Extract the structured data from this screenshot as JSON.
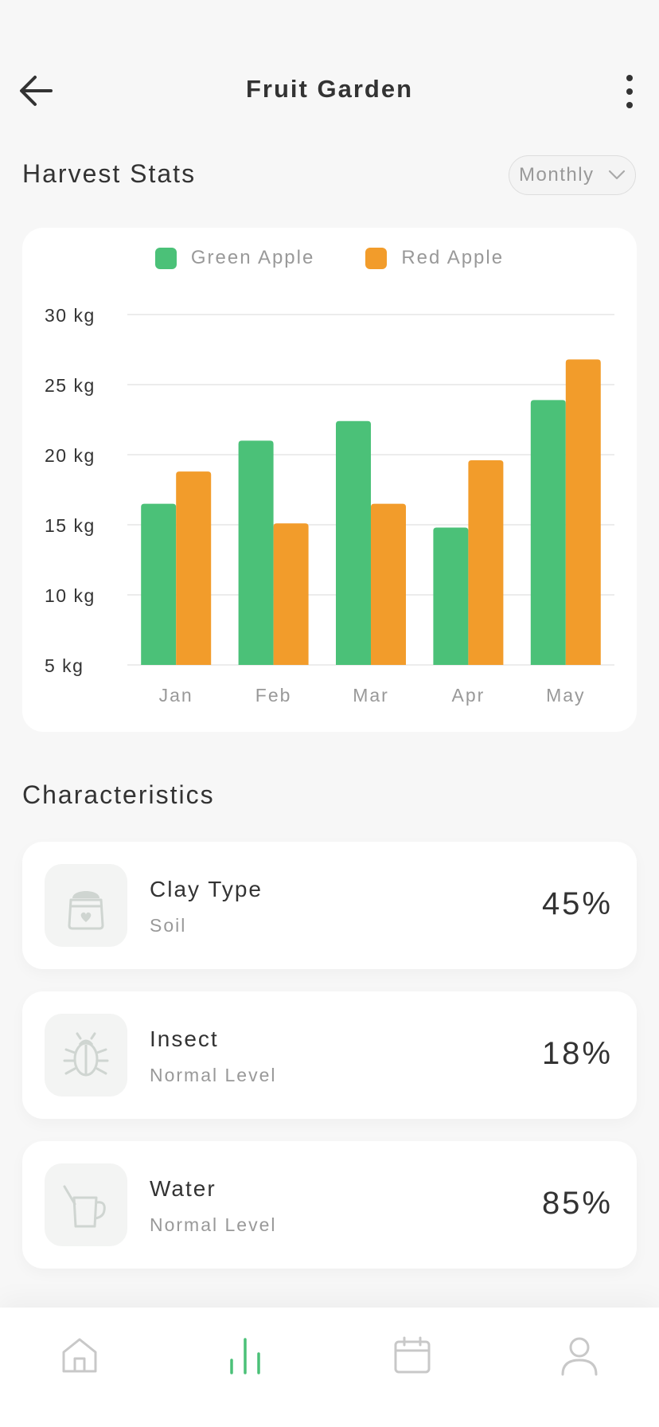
{
  "header": {
    "title": "Fruit Garden"
  },
  "stats": {
    "title": "Harvest Stats",
    "period": "Monthly"
  },
  "chart_data": {
    "type": "bar",
    "categories": [
      "Jan",
      "Feb",
      "Mar",
      "Apr",
      "May"
    ],
    "series": [
      {
        "name": "Green Apple",
        "color": "#4bc178",
        "values": [
          16.5,
          21,
          22.4,
          14.8,
          23.9
        ]
      },
      {
        "name": "Red Apple",
        "color": "#f29c2b",
        "values": [
          18.8,
          15.1,
          16.5,
          19.6,
          26.8
        ]
      }
    ],
    "yticks": [
      "5 kg",
      "10 kg",
      "15 kg",
      "20 kg",
      "25 kg",
      "30 kg"
    ],
    "ylim": [
      5,
      30
    ],
    "grid": true,
    "legend_position": "top"
  },
  "characteristics": {
    "title": "Characteristics",
    "items": [
      {
        "name": "Clay Type",
        "sub": "Soil",
        "value": "45%",
        "icon": "soil-bag-icon"
      },
      {
        "name": "Insect",
        "sub": "Normal Level",
        "value": "18%",
        "icon": "insect-icon"
      },
      {
        "name": "Water",
        "sub": "Normal Level",
        "value": "85%",
        "icon": "watering-can-icon"
      }
    ]
  },
  "nav": {
    "items": [
      "home-icon",
      "stats-icon",
      "calendar-icon",
      "profile-icon"
    ],
    "active": "stats-icon",
    "active_color": "#4bc178",
    "inactive_color": "#c8c8c8"
  }
}
